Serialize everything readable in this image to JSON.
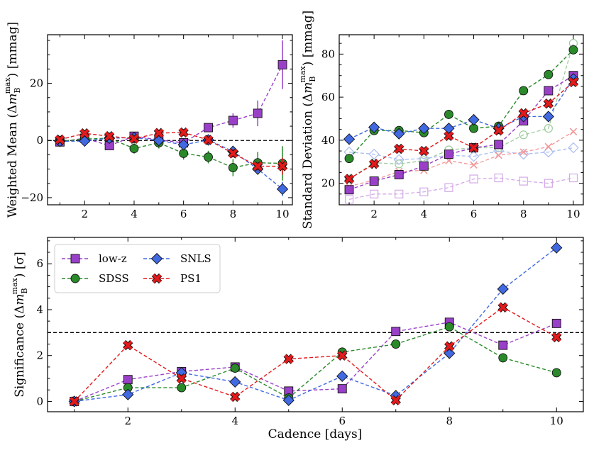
{
  "chart_data": [
    {
      "id": "mean",
      "type": "line",
      "xlabel": "",
      "ylabel": "Weighted Mean (Δm_B^max) [mmag]",
      "ylabel_parts": {
        "pre": "Weighted Mean (Δ",
        "m": "m",
        "sub": "B",
        "sup": "max",
        "post": ") [mmag]"
      },
      "xlim": [
        0.5,
        10.4
      ],
      "ylim": [
        -22.5,
        37
      ],
      "xticks": [
        2,
        4,
        6,
        8,
        10
      ],
      "yticks": [
        -20,
        0,
        20
      ],
      "hline": 0,
      "series": [
        {
          "key": "lowz",
          "x": [
            1,
            2,
            3,
            4,
            5,
            6,
            7,
            8,
            9,
            10
          ],
          "y": [
            -0.5,
            0.8,
            -1.8,
            1.5,
            0.2,
            -0.8,
            4.5,
            7.0,
            9.5,
            26.5
          ],
          "err": [
            1.2,
            1.2,
            1.5,
            1.2,
            1.5,
            1.5,
            1.5,
            2.5,
            4.5,
            8.5
          ]
        },
        {
          "key": "sdss",
          "x": [
            1,
            2,
            3,
            4,
            5,
            6,
            7,
            8,
            9,
            10
          ],
          "y": [
            -0.2,
            0.5,
            0.8,
            -2.8,
            -0.8,
            -4.5,
            -5.8,
            -9.5,
            -7.8,
            -8.0
          ],
          "err": [
            1.0,
            1.2,
            1.2,
            1.8,
            2.0,
            2.2,
            2.2,
            3.0,
            3.8,
            6.0
          ]
        },
        {
          "key": "snls",
          "x": [
            1,
            2,
            3,
            4,
            5,
            6,
            7,
            8,
            9,
            10
          ],
          "y": [
            -0.3,
            -0.2,
            0.8,
            1.0,
            0.0,
            -1.5,
            0.2,
            -3.8,
            -10.0,
            -17.0
          ],
          "err": [
            0.8,
            1.0,
            1.0,
            1.0,
            1.2,
            1.2,
            1.2,
            1.5,
            2.0,
            2.5
          ]
        },
        {
          "key": "ps1",
          "x": [
            1,
            2,
            3,
            4,
            5,
            6,
            7,
            8,
            9,
            10
          ],
          "y": [
            0.3,
            2.5,
            1.5,
            0.6,
            2.6,
            2.8,
            0.2,
            -4.5,
            -9.0,
            -9.0
          ],
          "err": [
            0.8,
            1.0,
            1.0,
            1.0,
            1.2,
            1.2,
            1.3,
            1.5,
            2.0,
            3.0
          ]
        }
      ]
    },
    {
      "id": "std",
      "type": "line",
      "xlabel": "",
      "ylabel": "Standard Deviation (Δm_B^max) [mmag]",
      "ylabel_parts": {
        "pre": "Standard Deviation (Δ",
        "m": "m",
        "sub": "B",
        "sup": "max",
        "post": ") [mmag]"
      },
      "xlim": [
        0.6,
        10.4
      ],
      "ylim": [
        10,
        89
      ],
      "xticks": [
        2,
        4,
        6,
        8,
        10
      ],
      "yticks": [
        20,
        40,
        60,
        80
      ],
      "series": [
        {
          "key": "lowz",
          "x": [
            1,
            2,
            3,
            4,
            5,
            6,
            7,
            8,
            9,
            10
          ],
          "y": [
            17.0,
            21.0,
            24.0,
            28.0,
            33.5,
            36.5,
            38.0,
            49.0,
            63.0,
            70.0
          ]
        },
        {
          "key": "sdss",
          "x": [
            1,
            2,
            3,
            4,
            5,
            6,
            7,
            8,
            9,
            10
          ],
          "y": [
            31.5,
            44.5,
            44.5,
            43.5,
            52.0,
            45.5,
            46.5,
            63.0,
            70.5,
            82.0
          ]
        },
        {
          "key": "snls",
          "x": [
            1,
            2,
            3,
            4,
            5,
            6,
            7,
            8,
            9,
            10
          ],
          "y": [
            40.5,
            46.0,
            43.0,
            45.5,
            45.5,
            49.5,
            45.5,
            51.0,
            51.0,
            68.5
          ]
        },
        {
          "key": "ps1",
          "x": [
            1,
            2,
            3,
            4,
            5,
            6,
            7,
            8,
            9,
            10
          ],
          "y": [
            22.0,
            29.0,
            36.0,
            35.0,
            42.0,
            36.5,
            44.5,
            52.5,
            57.0,
            67.0
          ]
        }
      ],
      "faint_series": [
        {
          "key": "lowz",
          "x": [
            1,
            2,
            3,
            4,
            5,
            6,
            7,
            8,
            9,
            10
          ],
          "y": [
            12.5,
            15.0,
            15.0,
            16.0,
            18.0,
            22.0,
            22.5,
            21.0,
            20.0,
            22.5
          ]
        },
        {
          "key": "sdss",
          "x": [
            1,
            2,
            3,
            4,
            5,
            6,
            7,
            8,
            9,
            10
          ],
          "y": [
            22.0,
            29.5,
            29.0,
            30.5,
            35.5,
            36.5,
            36.5,
            42.5,
            45.5,
            85.0
          ]
        },
        {
          "key": "snls",
          "x": [
            1,
            2,
            3,
            4,
            5,
            6,
            7,
            8,
            9,
            10
          ],
          "y": [
            34.5,
            33.5,
            31.0,
            31.5,
            33.0,
            32.5,
            35.0,
            33.5,
            34.5,
            36.5
          ]
        },
        {
          "key": "ps1",
          "x": [
            1,
            2,
            3,
            4,
            5,
            6,
            7,
            8,
            9,
            10
          ],
          "y": [
            18.5,
            21.5,
            25.5,
            26.0,
            30.5,
            28.5,
            33.0,
            34.5,
            37.0,
            44.0
          ]
        }
      ]
    },
    {
      "id": "sig",
      "type": "line",
      "xlabel": "Cadence [days]",
      "ylabel": "Significance (Δm_B^max) [σ]",
      "ylabel_parts": {
        "pre": "Significance (Δ",
        "m": "m",
        "sub": "B",
        "sup": "max",
        "post": ") [σ]"
      },
      "xlim": [
        0.5,
        10.5
      ],
      "ylim": [
        -0.45,
        7.15
      ],
      "xticks": [
        2,
        4,
        6,
        8,
        10
      ],
      "yticks": [
        0,
        2,
        4,
        6
      ],
      "hline": 3,
      "legend": {
        "placement": "top-left"
      },
      "series": [
        {
          "key": "lowz",
          "x": [
            1,
            2,
            3,
            4,
            5,
            6,
            7,
            8,
            9,
            10
          ],
          "y": [
            0.0,
            0.95,
            1.3,
            1.5,
            0.45,
            0.55,
            3.05,
            3.45,
            2.45,
            3.4
          ]
        },
        {
          "key": "sdss",
          "x": [
            1,
            2,
            3,
            4,
            5,
            6,
            7,
            8,
            9,
            10
          ],
          "y": [
            0.0,
            0.6,
            0.6,
            1.45,
            0.15,
            2.15,
            2.5,
            3.25,
            1.9,
            1.25
          ]
        },
        {
          "key": "snls",
          "x": [
            1,
            2,
            3,
            4,
            5,
            6,
            7,
            8,
            9,
            10
          ],
          "y": [
            0.0,
            0.3,
            1.25,
            0.85,
            0.05,
            1.1,
            0.25,
            2.1,
            4.9,
            6.7
          ]
        },
        {
          "key": "ps1",
          "x": [
            1,
            2,
            3,
            4,
            5,
            6,
            7,
            8,
            9,
            10
          ],
          "y": [
            0.0,
            2.45,
            1.0,
            0.2,
            1.85,
            2.0,
            0.05,
            2.4,
            4.1,
            2.8
          ]
        }
      ]
    }
  ],
  "series_styles": {
    "lowz": {
      "name": "low-z",
      "color": "#9a40c8",
      "marker": "square"
    },
    "sdss": {
      "name": "SDSS",
      "color": "#2a8a2a",
      "marker": "circle"
    },
    "snls": {
      "name": "SNLS",
      "color": "#4169e1",
      "marker": "diamond"
    },
    "ps1": {
      "name": "PS1",
      "color": "#e31a1c",
      "marker": "x"
    }
  },
  "legend": {
    "items": [
      {
        "key": "lowz",
        "label": "low-z"
      },
      {
        "key": "snls",
        "label": "SNLS"
      },
      {
        "key": "sdss",
        "label": "SDSS"
      },
      {
        "key": "ps1",
        "label": "PS1"
      }
    ]
  }
}
